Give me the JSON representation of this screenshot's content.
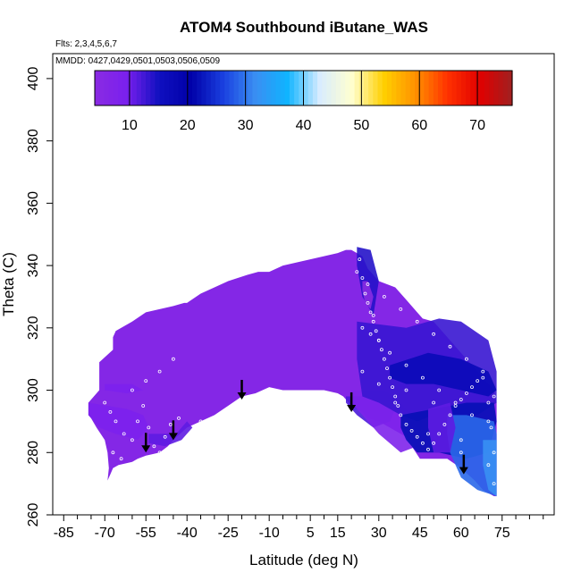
{
  "chart_data": {
    "type": "heatmap",
    "title": "ATOM4 Southbound iButane_WAS",
    "notes": {
      "flights": "Flts: 2,3,4,5,6,7",
      "dates": "MMDD: 0427,0429,0501,0503,0506,0509"
    },
    "xlabel": "Latitude (deg N)",
    "ylabel": "Theta (C)",
    "xlim": [
      -89,
      94
    ],
    "ylim": [
      260,
      408
    ],
    "x_ticks": [
      -85,
      -70,
      -55,
      -40,
      -25,
      -10,
      5,
      15,
      30,
      45,
      60,
      75
    ],
    "y_ticks": [
      260,
      280,
      300,
      320,
      340,
      360,
      380,
      400
    ],
    "colorbar": {
      "range": [
        4,
        76
      ],
      "ticks": [
        10,
        20,
        30,
        40,
        50,
        60,
        70
      ],
      "colors": [
        "#8a2be2",
        "#7a20ee",
        "#1010c0",
        "#0000a8",
        "#1a40e0",
        "#3a8ef2",
        "#10b4ff",
        "#d8ecff",
        "#ffffd0",
        "#ffd000",
        "#ff9000",
        "#ff3000",
        "#e00000",
        "#a02020"
      ]
    },
    "background_level": 6,
    "envelope": {
      "latitude": [
        -71,
        -70,
        -69,
        -68.5,
        -69,
        -70,
        -73,
        -75,
        -76,
        -76,
        -72,
        -72,
        -67,
        -67,
        -66,
        -60,
        -55,
        -45,
        -41,
        -40,
        -35,
        -30,
        -25,
        -18,
        -14,
        -10,
        -5,
        0,
        5,
        10,
        15,
        18,
        20,
        22,
        24,
        26,
        28,
        29,
        30,
        33,
        36,
        40,
        44,
        46,
        50,
        54,
        58,
        62,
        66,
        68,
        70,
        72,
        73,
        73,
        72,
        68,
        65,
        60,
        55,
        50,
        47,
        45,
        42,
        40,
        36,
        30,
        26,
        24,
        22,
        20,
        17,
        15,
        10,
        5,
        0,
        -5,
        -10,
        -15,
        -20,
        -25,
        -30,
        -35,
        -40,
        -45,
        -47,
        -50,
        -55,
        -58,
        -60,
        -65,
        -67,
        -68,
        -69,
        -70,
        -71
      ],
      "theta": [
        266,
        268,
        271,
        275,
        280,
        284,
        288,
        291,
        292,
        296,
        300,
        309,
        313,
        317,
        319,
        322,
        325,
        327,
        328,
        328,
        331,
        333,
        335,
        337,
        338,
        338,
        340,
        341,
        342,
        343,
        344,
        345,
        345,
        344,
        343,
        339,
        337,
        336,
        335,
        334,
        333,
        329,
        325,
        323,
        322,
        318,
        314,
        310,
        306,
        304,
        302,
        300,
        296,
        266,
        266,
        268,
        271,
        275,
        278,
        278,
        278,
        278,
        282,
        285,
        287,
        290,
        291,
        293,
        294,
        295,
        298,
        299,
        300,
        300,
        300,
        300,
        301,
        299,
        298,
        295,
        292,
        290,
        288,
        284,
        282,
        280,
        279,
        278,
        277,
        276,
        275,
        273,
        271,
        268,
        266
      ]
    },
    "patches": [
      {
        "latitude": [
          18,
          34,
          36,
          34,
          28,
          22,
          18
        ],
        "theta": [
          298,
          298,
          294,
          290,
          288,
          292,
          296
        ],
        "level": 12
      },
      {
        "latitude": [
          20,
          32,
          38,
          42,
          46,
          44,
          38,
          30,
          24,
          20
        ],
        "theta": [
          300,
          300,
          296,
          292,
          290,
          282,
          280,
          286,
          292,
          296
        ],
        "level": 8
      },
      {
        "latitude": [
          22,
          27,
          30,
          28,
          24,
          22
        ],
        "theta": [
          346,
          345,
          335,
          324,
          330,
          340
        ],
        "level": 14
      },
      {
        "latitude": [
          24,
          26,
          28,
          27,
          25,
          24
        ],
        "theta": [
          335,
          335,
          330,
          326,
          328,
          332
        ],
        "level": 4
      },
      {
        "latitude": [
          22,
          40,
          52,
          60,
          70,
          73,
          73,
          66,
          58,
          50,
          44,
          38,
          30,
          24,
          22
        ],
        "theta": [
          322,
          320,
          323,
          322,
          316,
          306,
          296,
          292,
          292,
          292,
          290,
          292,
          296,
          298,
          310
        ],
        "level": 13
      },
      {
        "latitude": [
          34,
          48,
          60,
          70,
          73,
          70,
          60,
          50,
          40,
          34
        ],
        "theta": [
          308,
          312,
          310,
          306,
          300,
          298,
          300,
          302,
          302,
          304
        ],
        "level": 17
      },
      {
        "latitude": [
          38,
          50,
          62,
          72,
          73,
          70,
          62,
          52,
          44,
          40,
          38
        ],
        "theta": [
          292,
          294,
          296,
          296,
          290,
          280,
          278,
          280,
          280,
          284,
          288
        ],
        "level": 22
      },
      {
        "latitude": [
          55,
          62,
          72,
          73,
          73,
          66,
          60,
          56,
          55
        ],
        "theta": [
          292,
          292,
          290,
          286,
          266,
          268,
          272,
          280,
          286
        ],
        "level": 29
      },
      {
        "latitude": [
          68,
          73,
          73,
          70,
          68
        ],
        "theta": [
          284,
          284,
          266,
          268,
          276
        ],
        "level": 32
      },
      {
        "latitude": [
          48,
          56,
          58,
          56,
          50,
          48
        ],
        "theta": [
          294,
          296,
          288,
          280,
          280,
          288
        ],
        "level": 11
      },
      {
        "latitude": [
          -76,
          -62,
          -56,
          -54,
          -58,
          -66,
          -72,
          -76
        ],
        "theta": [
          296,
          294,
          292,
          288,
          284,
          286,
          288,
          292
        ],
        "level": 9
      },
      {
        "latitude": [
          -70,
          -60,
          -56,
          -62,
          -70
        ],
        "theta": [
          302,
          302,
          300,
          299,
          300
        ],
        "level": 9
      },
      {
        "latitude": [
          -54,
          -44,
          -40,
          -38,
          -42,
          -48,
          -54
        ],
        "theta": [
          286,
          286,
          290,
          288,
          284,
          282,
          283
        ],
        "level": 11
      }
    ],
    "samples": {
      "latitude": [
        -70,
        -68,
        -66,
        -63,
        -60,
        -58,
        -56,
        -54,
        -52,
        -48,
        -46,
        -43,
        -41,
        -38,
        -35,
        -60,
        -55,
        -50,
        -45,
        -67,
        -64,
        -56,
        -50,
        -44,
        -40,
        -34,
        -30,
        -22,
        -12,
        -2,
        4,
        10,
        14,
        18,
        21,
        22,
        23,
        24,
        25,
        26,
        27,
        28,
        29,
        30,
        31,
        32,
        33,
        34,
        35,
        36,
        37,
        38,
        40,
        42,
        44,
        46,
        48,
        50,
        52,
        54,
        56,
        58,
        60,
        62,
        64,
        66,
        68,
        70,
        71,
        72,
        24,
        27,
        30,
        34,
        40,
        46,
        52,
        58,
        64,
        70,
        26,
        32,
        38,
        44,
        50,
        56,
        62,
        68,
        72,
        30,
        40,
        50,
        60,
        70,
        24,
        36,
        48,
        60,
        72,
        28
      ],
      "theta": [
        296,
        293,
        290,
        286,
        284,
        290,
        295,
        288,
        282,
        285,
        289,
        291,
        283,
        286,
        290,
        300,
        303,
        306,
        310,
        280,
        278,
        276,
        280,
        279,
        282,
        285,
        287,
        291,
        293,
        294,
        295,
        296,
        297,
        295,
        292,
        338,
        342,
        336,
        331,
        328,
        325,
        322,
        319,
        316,
        313,
        310,
        307,
        304,
        301,
        298,
        295,
        292,
        289,
        287,
        285,
        283,
        281,
        283,
        286,
        289,
        292,
        295,
        297,
        299,
        301,
        303,
        306,
        296,
        288,
        280,
        320,
        318,
        316,
        312,
        308,
        304,
        300,
        296,
        292,
        290,
        334,
        330,
        326,
        322,
        318,
        314,
        310,
        304,
        298,
        302,
        300,
        296,
        284,
        276,
        306,
        296,
        286,
        280,
        270,
        324
      ]
    },
    "arrows": [
      {
        "latitude": -55,
        "theta": 280
      },
      {
        "latitude": -45,
        "theta": 284
      },
      {
        "latitude": -20,
        "theta": 297
      },
      {
        "latitude": 20,
        "theta": 293
      },
      {
        "latitude": 61,
        "theta": 273
      }
    ]
  }
}
